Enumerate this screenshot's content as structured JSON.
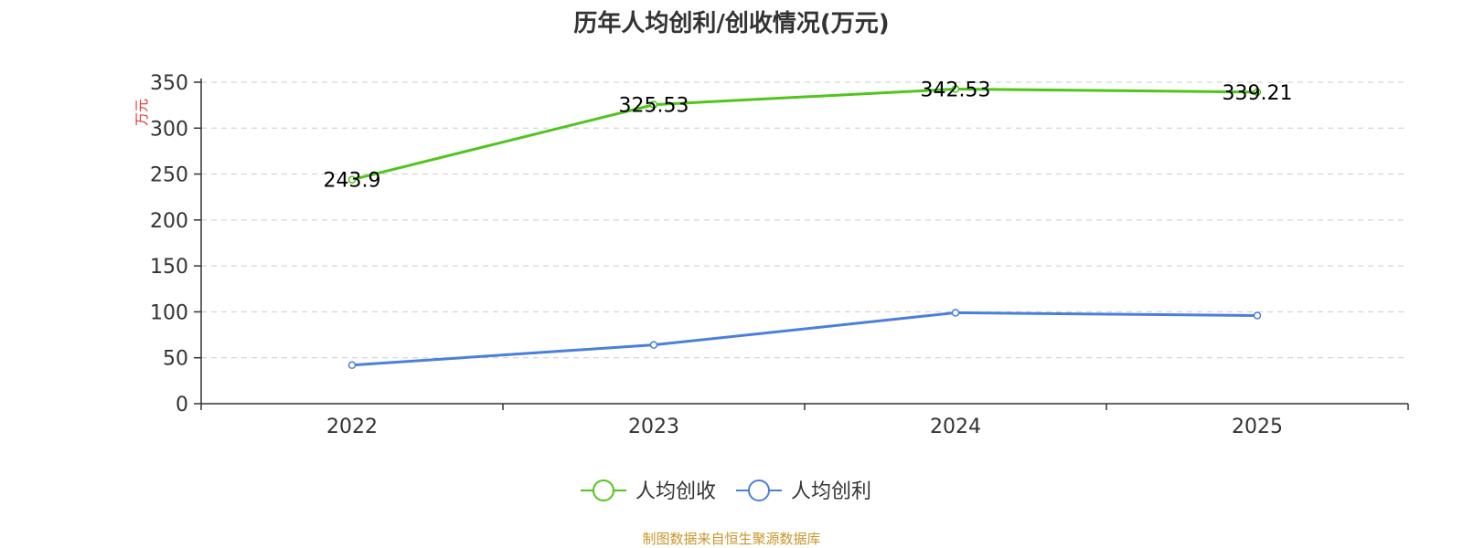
{
  "chart_data": {
    "type": "line",
    "title": "历年人均创利/创收情况(万元)",
    "ylabel": "万元",
    "xlabel": "",
    "categories": [
      "2022",
      "2023",
      "2024",
      "2025"
    ],
    "ylim": [
      0,
      350
    ],
    "yticks": [
      0,
      50,
      100,
      150,
      200,
      250,
      300,
      350
    ],
    "grid": true,
    "legend_position": "bottom-center",
    "series": [
      {
        "name": "人均创收",
        "values": [
          243.9,
          325.53,
          342.53,
          339.21
        ],
        "data_labels": [
          "243.9",
          "325.53",
          "342.53",
          "339.21"
        ],
        "color": "#52c41a"
      },
      {
        "name": "人均创利",
        "values": [
          42,
          64,
          99,
          96
        ],
        "color": "#4a7fdc"
      }
    ]
  },
  "footer": {
    "source": "制图数据来自恒生聚源数据库"
  }
}
